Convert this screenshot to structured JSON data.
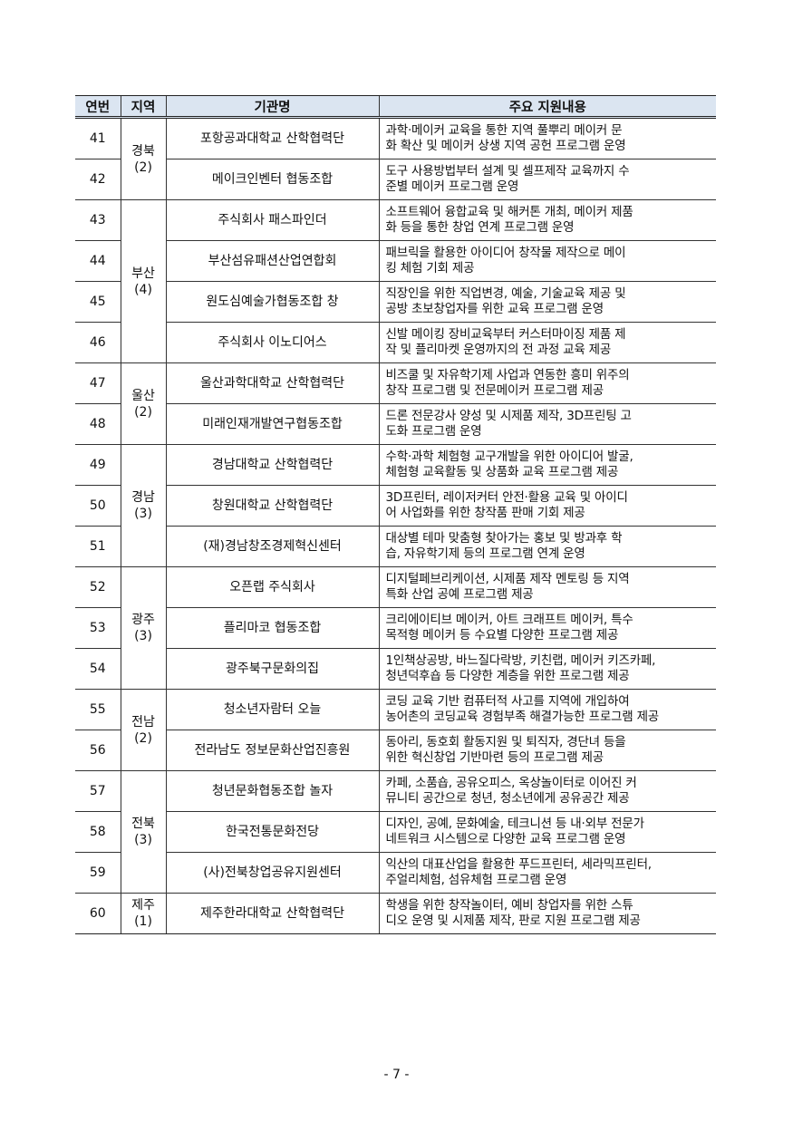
{
  "table": {
    "headers": [
      "연번",
      "지역",
      "기관명",
      "주요 지원내용"
    ],
    "header_bg": "#dbe5f1",
    "rows": [
      {
        "no": "41",
        "region": "경북",
        "count": "(2)",
        "span": 2,
        "org": "포항공과대학교 산학협력단",
        "desc": [
          "과학·메이커 교육을 통한 지역 풀뿌리 메이커 문",
          "화 확산 및 메이커 상생 지역 공헌 프로그램 운영"
        ]
      },
      {
        "no": "42",
        "org": "메이크인벤터 협동조합",
        "desc": [
          "도구 사용방법부터 설계 및 셀프제작 교육까지 수",
          "준별 메이커 프로그램 운영"
        ]
      },
      {
        "no": "43",
        "region": "부산",
        "count": "(4)",
        "span": 4,
        "org": "주식회사 패스파인더",
        "desc": [
          "소프트웨어 융합교육 및 해커톤 개최, 메이커 제품",
          "화 등을 통한 창업 연계 프로그램 운영"
        ]
      },
      {
        "no": "44",
        "org": "부산섬유패션산업연합회",
        "desc": [
          "패브릭을 활용한 아이디어 창작물 제작으로 메이",
          "킹 체험 기회 제공"
        ]
      },
      {
        "no": "45",
        "org": "원도심예술가협동조합 창",
        "desc": [
          "직장인을 위한 직업변경, 예술, 기술교육 제공 및",
          "공방 초보창업자를 위한 교육 프로그램 운영"
        ]
      },
      {
        "no": "46",
        "org": "주식회사 이노디어스",
        "desc": [
          "신발 메이킹 장비교육부터 커스터마이징 제품 제",
          "작 및 플리마켓 운영까지의 전 과정 교육 제공"
        ]
      },
      {
        "no": "47",
        "region": "울산",
        "count": "(2)",
        "span": 2,
        "org": "울산과학대학교 산학협력단",
        "desc": [
          "비즈쿨 및 자유학기제 사업과 연동한 흥미 위주의",
          "창작 프로그램 및 전문메이커 프로그램 제공"
        ]
      },
      {
        "no": "48",
        "org": "미래인재개발연구협동조합",
        "desc": [
          "드론 전문강사 양성 및 시제품 제작, 3D프린팅 고",
          "도화 프로그램 운영"
        ]
      },
      {
        "no": "49",
        "region": "경남",
        "count": "(3)",
        "span": 3,
        "org": "경남대학교 산학협력단",
        "desc": [
          "수학·과학 체험형 교구개발을 위한 아이디어 발굴,",
          "체험형 교육활동 및 상품화 교육 프로그램 제공"
        ]
      },
      {
        "no": "50",
        "org": "창원대학교 산학협력단",
        "desc": [
          "3D프린터, 레이저커터 안전·활용 교육 및 아이디",
          "어 사업화를 위한 창작품 판매 기회 제공"
        ]
      },
      {
        "no": "51",
        "org": "(재)경남창조경제혁신센터",
        "desc": [
          "대상별 테마 맞춤형 찾아가는 홍보 및 방과후 학",
          "습, 자유학기제 등의 프로그램 연계 운영"
        ]
      },
      {
        "no": "52",
        "region": "광주",
        "count": "(3)",
        "span": 3,
        "org": "오픈랩 주식회사",
        "desc": [
          "디지털페브리케이션, 시제품 제작 멘토링 등 지역",
          "특화 산업 공예 프로그램 제공"
        ]
      },
      {
        "no": "53",
        "org": "플리마코 협동조합",
        "desc": [
          "크리에이티브 메이커, 아트 크래프트 메이커, 특수",
          "목적형 메이커 등 수요별 다양한 프로그램 제공"
        ]
      },
      {
        "no": "54",
        "org": "광주북구문화의집",
        "desc": [
          "1인책상공방, 바느질다락방, 키친랩, 메이커 키즈카페,",
          "청년덕후숍 등 다양한 계층을 위한 프로그램 제공"
        ]
      },
      {
        "no": "55",
        "region": "전남",
        "count": "(2)",
        "span": 2,
        "org": "청소년자람터 오늘",
        "desc": [
          "코딩 교육 기반 컴퓨터적 사고를 지역에 개입하여",
          "농어촌의 코딩교육 경험부족 해결가능한 프로그램 제공"
        ]
      },
      {
        "no": "56",
        "org": "전라남도 정보문화산업진흥원",
        "desc": [
          "동아리, 동호회 활동지원 및 퇴직자, 경단녀 등을",
          "위한 혁신창업 기반마련 등의 프로그램 제공"
        ]
      },
      {
        "no": "57",
        "region": "전북",
        "count": "(3)",
        "span": 3,
        "org": "청년문화협동조합 놀자",
        "desc": [
          "카페, 소품숍, 공유오피스, 옥상놀이터로 이어진 커",
          "뮤니티 공간으로 청년, 청소년에게 공유공간 제공"
        ]
      },
      {
        "no": "58",
        "org": "한국전통문화전당",
        "desc": [
          "디자인, 공예, 문화예술, 테크니션 등 내·외부 전문가",
          "네트워크 시스템으로 다양한 교육 프로그램 운영"
        ]
      },
      {
        "no": "59",
        "org": "(사)전북창업공유지원센터",
        "desc": [
          "익산의 대표산업을 활용한 푸드프린터, 세라믹프린터,",
          "주얼리체험, 섬유체험 프로그램 운영"
        ]
      },
      {
        "no": "60",
        "region": "제주",
        "count": "(1)",
        "span": 1,
        "org": "제주한라대학교 산학협력단",
        "desc": [
          "학생을 위한 창작놀이터, 예비 창업자를 위한 스튜",
          "디오 운영 및 시제품 제작, 판로 지원 프로그램 제공"
        ]
      }
    ]
  },
  "footer": {
    "page_number": "- 7 -"
  }
}
